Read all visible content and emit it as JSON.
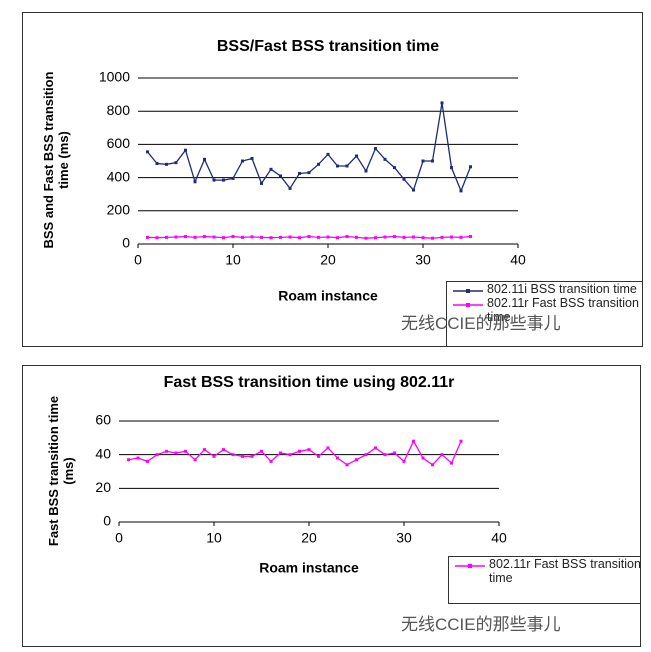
{
  "chart_data": [
    {
      "type": "line",
      "title": "BSS/Fast BSS transition time",
      "x_label": "Roam instance",
      "y_label": "BSS and Fast BSS transition time (ms)",
      "x": [
        1,
        2,
        3,
        4,
        5,
        6,
        7,
        8,
        9,
        10,
        11,
        12,
        13,
        14,
        15,
        16,
        17,
        18,
        19,
        20,
        21,
        22,
        23,
        24,
        25,
        26,
        27,
        28,
        29,
        30,
        31,
        32,
        33,
        34,
        35
      ],
      "series": [
        {
          "name": "802.11i BSS transition time",
          "color": "#1f2a78",
          "values": [
            555,
            485,
            480,
            490,
            565,
            375,
            510,
            385,
            385,
            395,
            500,
            515,
            365,
            450,
            410,
            335,
            425,
            430,
            480,
            540,
            470,
            470,
            530,
            440,
            575,
            510,
            460,
            390,
            325,
            500,
            500,
            850,
            460,
            320,
            465
          ]
        },
        {
          "name": "802.11r Fast BSS transition time",
          "color": "#ff00ff",
          "values": [
            40,
            38,
            40,
            42,
            45,
            40,
            45,
            42,
            38,
            45,
            40,
            43,
            40,
            38,
            40,
            42,
            38,
            45,
            40,
            42,
            38,
            45,
            40,
            35,
            38,
            42,
            45,
            40,
            42,
            38,
            35,
            40,
            42,
            40,
            45
          ]
        }
      ],
      "xlim": [
        0,
        40
      ],
      "xticks": [
        0,
        10,
        20,
        30,
        40
      ],
      "ylim": [
        0,
        1000
      ],
      "yticks": [
        0,
        200,
        400,
        600,
        800,
        1000
      ],
      "grid": true,
      "watermark": "无线CCIE的那些事儿"
    },
    {
      "type": "line",
      "title": "Fast BSS transition time using 802.11r",
      "x_label": "Roam instance",
      "y_label": "Fast BSS transition time (ms)",
      "x": [
        1,
        2,
        3,
        4,
        5,
        6,
        7,
        8,
        9,
        10,
        11,
        12,
        13,
        14,
        15,
        16,
        17,
        18,
        19,
        20,
        21,
        22,
        23,
        24,
        25,
        26,
        27,
        28,
        29,
        30,
        31,
        32,
        33,
        34,
        35,
        36
      ],
      "series": [
        {
          "name": "802.11r Fast BSS transition time",
          "color": "#ff00ff",
          "values": [
            37,
            38,
            36,
            40,
            42,
            41,
            42,
            37,
            43,
            39,
            43,
            40,
            39,
            39,
            42,
            36,
            41,
            40,
            42,
            43,
            39,
            44,
            38,
            34,
            37,
            40,
            44,
            40,
            41,
            36,
            48,
            38,
            34,
            40,
            35,
            48
          ]
        }
      ],
      "xlim": [
        0,
        40
      ],
      "xticks": [
        0,
        10,
        20,
        30,
        40
      ],
      "ylim": [
        0,
        60
      ],
      "yticks": [
        0,
        20,
        40,
        60
      ],
      "grid": true,
      "watermark": "无线CCIE的那些事儿"
    }
  ]
}
